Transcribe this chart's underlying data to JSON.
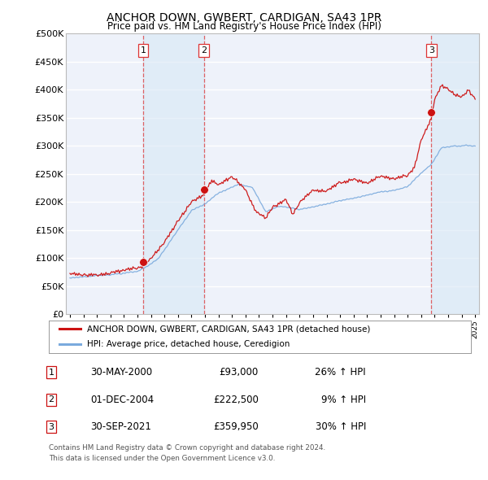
{
  "title": "ANCHOR DOWN, GWBERT, CARDIGAN, SA43 1PR",
  "subtitle": "Price paid vs. HM Land Registry's House Price Index (HPI)",
  "legend_label_red": "ANCHOR DOWN, GWBERT, CARDIGAN, SA43 1PR (detached house)",
  "legend_label_blue": "HPI: Average price, detached house, Ceredigion",
  "footer1": "Contains HM Land Registry data © Crown copyright and database right 2024.",
  "footer2": "This data is licensed under the Open Government Licence v3.0.",
  "sales": [
    {
      "label": "1",
      "date": "30-MAY-2000",
      "price": 93000,
      "hpi_pct": "26%",
      "x_year": 2000.41
    },
    {
      "label": "2",
      "date": "01-DEC-2004",
      "price": 222500,
      "hpi_pct": "9%",
      "x_year": 2004.92
    },
    {
      "label": "3",
      "date": "30-SEP-2021",
      "price": 359950,
      "hpi_pct": "30%",
      "x_year": 2021.75
    }
  ],
  "table_rows": [
    {
      "num": "1",
      "date": "30-MAY-2000",
      "price": "£93,000",
      "pct": "26% ↑ HPI"
    },
    {
      "num": "2",
      "date": "01-DEC-2004",
      "price": "£222,500",
      "pct": "9% ↑ HPI"
    },
    {
      "num": "3",
      "date": "30-SEP-2021",
      "price": "£359,950",
      "pct": "30% ↑ HPI"
    }
  ],
  "ylim": [
    0,
    500000
  ],
  "yticks": [
    0,
    50000,
    100000,
    150000,
    200000,
    250000,
    300000,
    350000,
    400000,
    450000,
    500000
  ],
  "xlim_start": 1994.7,
  "xlim_end": 2025.3,
  "red_color": "#cc1111",
  "blue_color": "#7aaadd",
  "shade_color": "#d8e8f5",
  "vline_color": "#dd3333",
  "bg_chart": "#eef2fa",
  "bg_figure": "#ffffff",
  "grid_color": "#ffffff",
  "border_color": "#bbbbbb"
}
